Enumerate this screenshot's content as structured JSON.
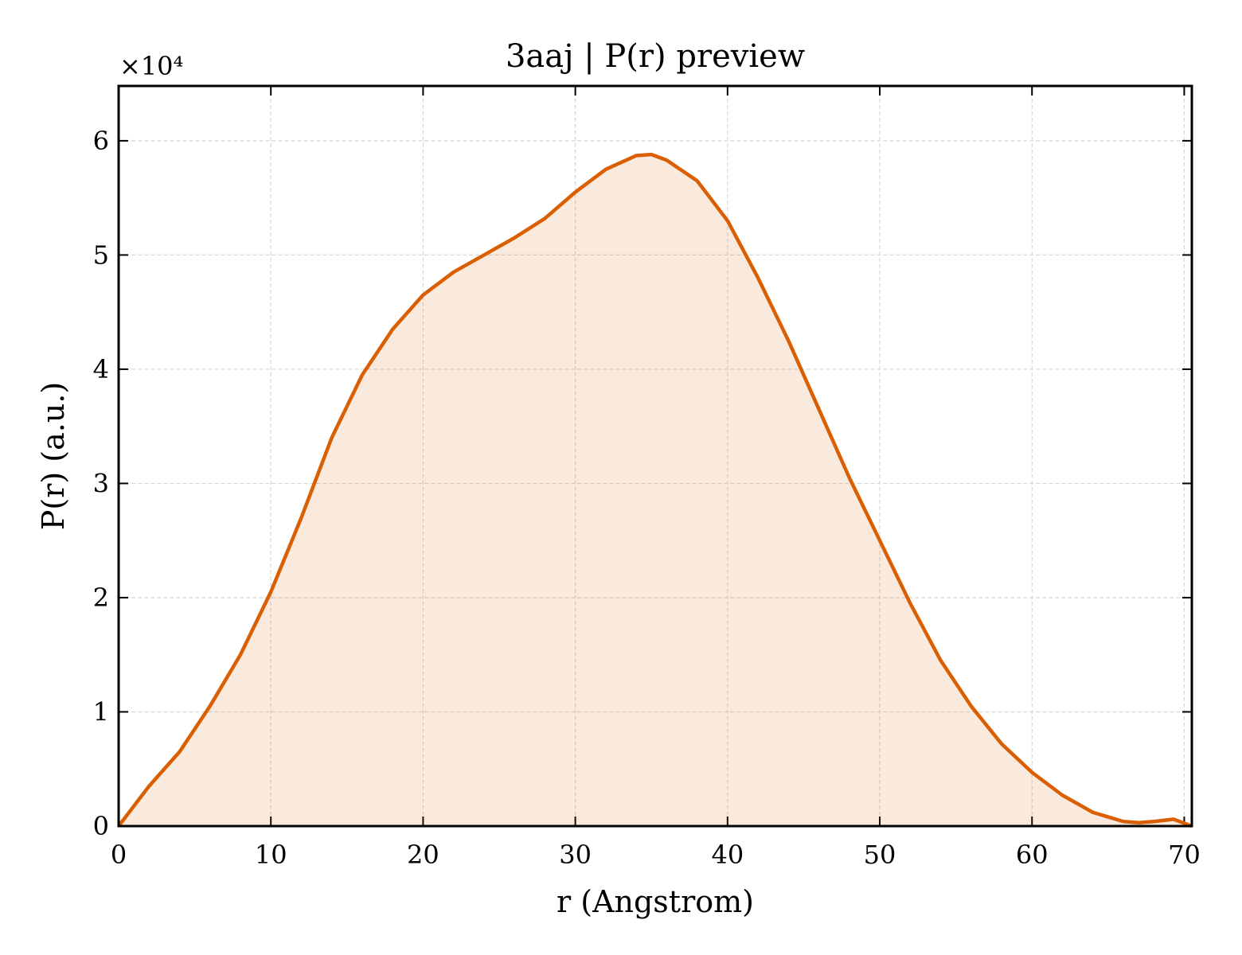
{
  "chart_data": {
    "type": "line",
    "title": "3aaj | P(r) preview",
    "x_label": "r (Angstrom)",
    "y_label": "P(r) (a.u.)",
    "y_offset_label": "×10⁴",
    "x": [
      0,
      2,
      4,
      6,
      8,
      10,
      12,
      14,
      16,
      18,
      20,
      22,
      24,
      26,
      28,
      30,
      32,
      34,
      35,
      36,
      38,
      40,
      42,
      44,
      46,
      48,
      50,
      52,
      54,
      56,
      58,
      60,
      62,
      64,
      66,
      67,
      68,
      69.3,
      70.5
    ],
    "series": [
      {
        "name": "P(r)",
        "color": "#d95f02",
        "fill": true,
        "values": [
          0,
          0.35,
          0.65,
          1.05,
          1.5,
          2.05,
          2.7,
          3.4,
          3.95,
          4.35,
          4.65,
          4.85,
          5.0,
          5.15,
          5.32,
          5.55,
          5.75,
          5.87,
          5.88,
          5.83,
          5.65,
          5.3,
          4.8,
          4.25,
          3.65,
          3.05,
          2.5,
          1.95,
          1.45,
          1.05,
          0.72,
          0.47,
          0.27,
          0.12,
          0.04,
          0.03,
          0.04,
          0.06,
          0.0
        ]
      }
    ],
    "xlim": [
      0,
      70.5
    ],
    "ylim": [
      0,
      6.48
    ],
    "xticks": [
      0,
      10,
      20,
      30,
      40,
      50,
      60,
      70
    ],
    "yticks": [
      0,
      1,
      2,
      3,
      4,
      5,
      6
    ],
    "grid": true
  }
}
